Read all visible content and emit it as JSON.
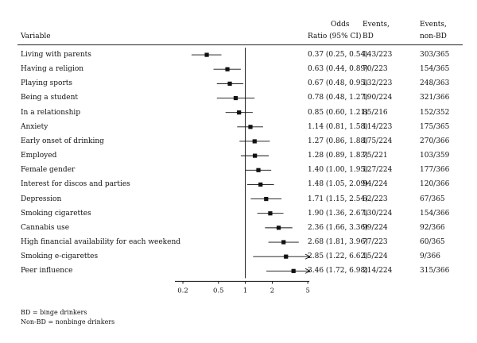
{
  "header": {
    "variable": "Variable",
    "or_line1": "Odds",
    "or_line2": "Ratio (95% CI)",
    "bd_line1": "Events,",
    "bd_line2": "BD",
    "nbd_line1": "Events,",
    "nbd_line2": "non-BD"
  },
  "chart_data": {
    "type": "forest",
    "xscale": "log",
    "xlim": [
      0.15,
      5.3
    ],
    "reference": 1,
    "xticks": [
      "0.2",
      "0.5",
      "1",
      "2",
      "5"
    ],
    "rows": [
      {
        "label": "Living with parents",
        "or": 0.37,
        "lo": 0.25,
        "hi": 0.54,
        "or_text": "0.37 (0.25, 0.54)",
        "bd": "143/223",
        "nbd": "303/365"
      },
      {
        "label": "Having a religion",
        "or": 0.63,
        "lo": 0.44,
        "hi": 0.89,
        "or_text": "0.63 (0.44, 0.89)",
        "bd": "70/223",
        "nbd": "154/365"
      },
      {
        "label": "Playing sports",
        "or": 0.67,
        "lo": 0.48,
        "hi": 0.95,
        "or_text": "0.67 (0.48, 0.95)",
        "bd": "132/223",
        "nbd": "248/363"
      },
      {
        "label": "Being a student",
        "or": 0.78,
        "lo": 0.48,
        "hi": 1.27,
        "or_text": "0.78 (0.48, 1.27)",
        "bd": "190/224",
        "nbd": "321/366"
      },
      {
        "label": "In a relationship",
        "or": 0.85,
        "lo": 0.6,
        "hi": 1.21,
        "or_text": "0.85 (0.60, 1.21)",
        "bd": "85/216",
        "nbd": "152/352"
      },
      {
        "label": "Anxiety",
        "or": 1.14,
        "lo": 0.81,
        "hi": 1.58,
        "or_text": "1.14 (0.81, 1.58)",
        "bd": "114/223",
        "nbd": "175/365"
      },
      {
        "label": "Early onset of drinking",
        "or": 1.27,
        "lo": 0.86,
        "hi": 1.88,
        "or_text": "1.27 (0.86, 1.88)",
        "bd": "175/224",
        "nbd": "270/366"
      },
      {
        "label": "Employed",
        "or": 1.28,
        "lo": 0.89,
        "hi": 1.83,
        "or_text": "1.28 (0.89, 1.83)",
        "bd": "75/221",
        "nbd": "103/359"
      },
      {
        "label": "Female gender",
        "or": 1.4,
        "lo": 1.0,
        "hi": 1.95,
        "or_text": "1.40 (1.00, 1.95)",
        "bd": "127/224",
        "nbd": "177/366"
      },
      {
        "label": "Interest for discos and parties",
        "or": 1.48,
        "lo": 1.05,
        "hi": 2.09,
        "or_text": "1.48 (1.05, 2.09)",
        "bd": "94/224",
        "nbd": "120/366"
      },
      {
        "label": "Depression",
        "or": 1.71,
        "lo": 1.15,
        "hi": 2.54,
        "or_text": "1.71 (1.15, 2.54)",
        "bd": "62/223",
        "nbd": "67/365"
      },
      {
        "label": "Smoking cigarettes",
        "or": 1.9,
        "lo": 1.36,
        "hi": 2.67,
        "or_text": "1.90 (1.36, 2.67)",
        "bd": "130/224",
        "nbd": "154/366"
      },
      {
        "label": "Cannabis use",
        "or": 2.36,
        "lo": 1.66,
        "hi": 3.36,
        "or_text": "2.36 (1.66, 3.36)",
        "bd": "99/224",
        "nbd": "92/366"
      },
      {
        "label": "High financial availability for each weekend",
        "or": 2.68,
        "lo": 1.81,
        "hi": 3.96,
        "or_text": "2.68 (1.81, 3.96)",
        "bd": "77/223",
        "nbd": "60/365"
      },
      {
        "label": "Smoking e-cigarettes",
        "or": 2.85,
        "lo": 1.22,
        "hi": 6.62,
        "or_text": "2.85 (1.22, 6.62)",
        "bd": "15/224",
        "nbd": "9/366"
      },
      {
        "label": "Peer influence",
        "or": 3.46,
        "lo": 1.72,
        "hi": 6.98,
        "or_text": "3.46 (1.72, 6.98)",
        "bd": "214/224",
        "nbd": "315/366"
      }
    ]
  },
  "footnotes": {
    "bd": "BD = binge drinkers",
    "nbd": "Non-BD = nonbinge drinkers"
  }
}
